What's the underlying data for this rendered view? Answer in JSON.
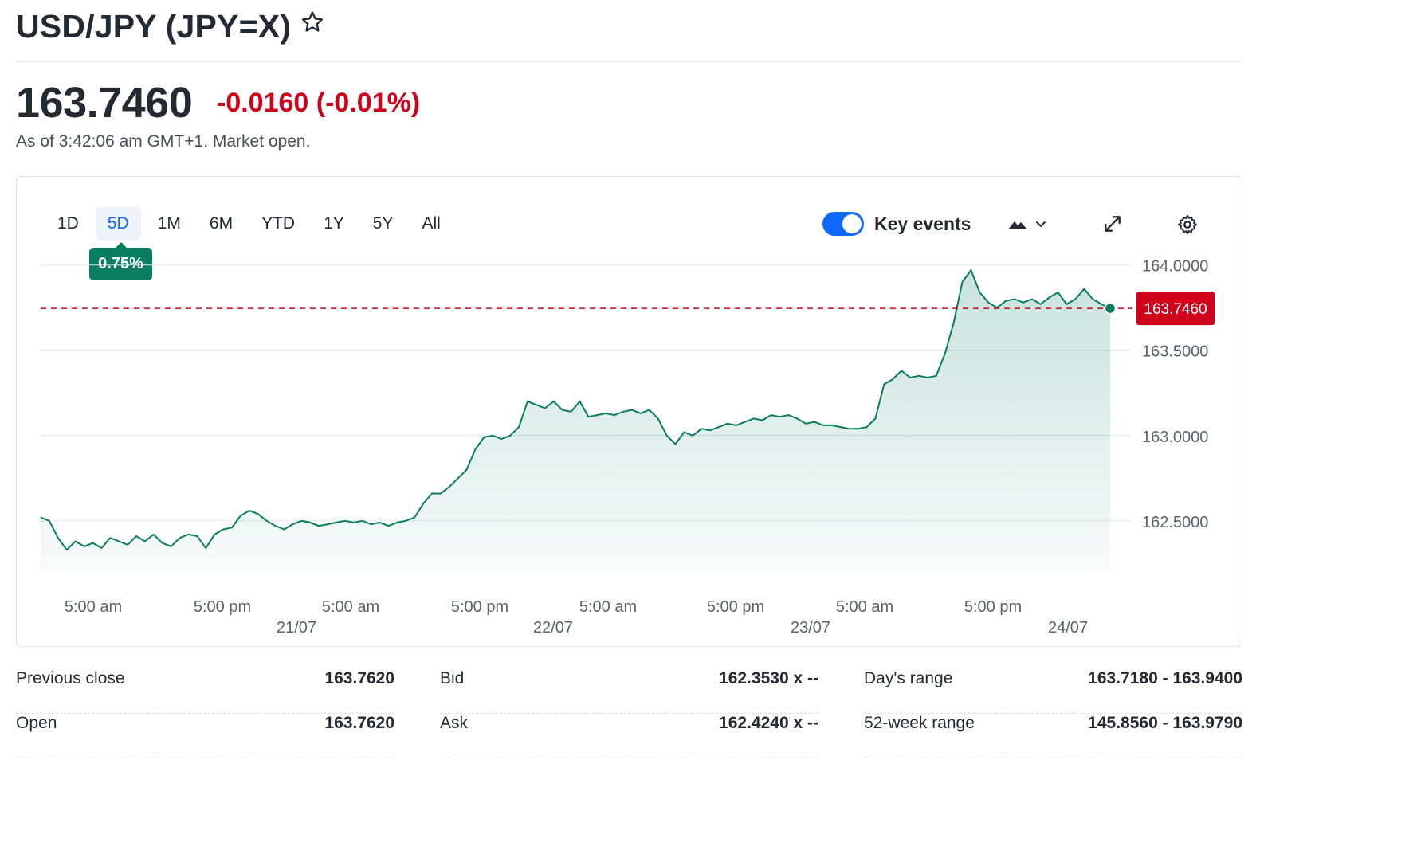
{
  "header": {
    "title": "USD/JPY (JPY=X)"
  },
  "quote": {
    "price": "163.7460",
    "change": "-0.0160",
    "change_pct": "(-0.01%)",
    "as_of": "As of 3:42:06 am GMT+1. Market open."
  },
  "toolbar": {
    "ranges": [
      "1D",
      "5D",
      "1M",
      "6M",
      "YTD",
      "1Y",
      "5Y",
      "All"
    ],
    "active_range": "5D",
    "performance_badge": "0.75%",
    "key_events_label": "Key events",
    "key_events_enabled": true
  },
  "colors": {
    "line": "#097d60",
    "negative": "#d0021b",
    "accent": "#0f69ff"
  },
  "chart_data": {
    "type": "area",
    "series": [
      {
        "values": [
          162.52,
          162.5,
          162.4,
          162.33,
          162.38,
          162.35,
          162.37,
          162.34,
          162.4,
          162.38,
          162.36,
          162.41,
          162.38,
          162.42,
          162.37,
          162.35,
          162.4,
          162.42,
          162.41,
          162.34,
          162.42,
          162.45,
          162.46,
          162.53,
          162.56,
          162.54,
          162.5,
          162.47,
          162.45,
          162.48,
          162.5,
          162.49,
          162.47,
          162.48,
          162.49,
          162.5,
          162.49,
          162.5,
          162.48,
          162.49,
          162.47,
          162.49,
          162.5,
          162.52,
          162.6,
          162.66,
          162.66,
          162.7,
          162.75,
          162.8,
          162.92,
          162.99,
          163.0,
          162.98,
          163.0,
          163.05,
          163.2,
          163.18,
          163.16,
          163.2,
          163.15,
          163.14,
          163.2,
          163.11,
          163.12,
          163.13,
          163.12,
          163.14,
          163.15,
          163.13,
          163.15,
          163.1,
          163.0,
          162.95,
          163.02,
          163.0,
          163.04,
          163.03,
          163.05,
          163.07,
          163.06,
          163.08,
          163.1,
          163.09,
          163.12,
          163.11,
          163.12,
          163.1,
          163.07,
          163.08,
          163.06,
          163.06,
          163.05,
          163.04,
          163.04,
          163.05,
          163.1,
          163.3,
          163.33,
          163.38,
          163.34,
          163.35,
          163.34,
          163.35,
          163.48,
          163.66,
          163.9,
          163.97,
          163.84,
          163.78,
          163.75,
          163.79,
          163.8,
          163.78,
          163.8,
          163.77,
          163.81,
          163.84,
          163.77,
          163.8,
          163.86,
          163.8,
          163.77,
          163.746
        ],
        "last": 163.746
      }
    ],
    "reference_line": 163.746,
    "ylim": [
      162.2,
      164.05
    ],
    "yticks": [
      "164.0000",
      "163.5000",
      "163.0000",
      "162.5000"
    ],
    "ytick_values": [
      164.0,
      163.5,
      163.0,
      162.5
    ],
    "last_label": "163.7460",
    "xticks": [
      {
        "time": "5:00 am",
        "date": ""
      },
      {
        "time": "5:00 pm",
        "date": ""
      },
      {
        "time": "5:00 am",
        "date": "21/07"
      },
      {
        "time": "5:00 pm",
        "date": ""
      },
      {
        "time": "5:00 am",
        "date": "22/07"
      },
      {
        "time": "5:00 pm",
        "date": ""
      },
      {
        "time": "5:00 am",
        "date": "23/07"
      },
      {
        "time": "5:00 pm",
        "date": ""
      }
    ],
    "date_labels": [
      "21/07",
      "22/07",
      "23/07",
      "24/07"
    ],
    "grid": true,
    "title": "",
    "xlabel": "",
    "ylabel": ""
  },
  "stats": [
    [
      {
        "label": "Previous close",
        "value": "163.7620"
      },
      {
        "label": "Open",
        "value": "163.7620"
      }
    ],
    [
      {
        "label": "Bid",
        "value": "162.3530 x --"
      },
      {
        "label": "Ask",
        "value": "162.4240 x --"
      }
    ],
    [
      {
        "label": "Day's range",
        "value": "163.7180 - 163.9400"
      },
      {
        "label": "52-week range",
        "value": "145.8560 - 163.9790"
      }
    ]
  ]
}
